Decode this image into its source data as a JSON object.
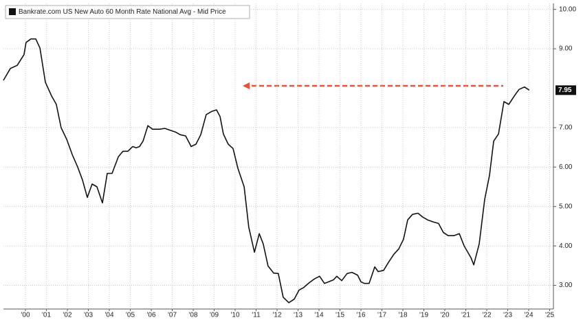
{
  "chart_data": {
    "type": "line",
    "series": [
      {
        "name": "Bankrate.com US New Auto 60 Month Rate National Avg - Mid Price",
        "color": "#111111",
        "x": [
          1999.45,
          1999.78,
          2000.11,
          2000.43,
          2000.53,
          2000.76,
          2000.99,
          2001.19,
          2001.45,
          2001.75,
          2001.97,
          2002.2,
          2002.47,
          2002.73,
          2002.99,
          2003.22,
          2003.45,
          2003.68,
          2003.91,
          2004.17,
          2004.4,
          2004.63,
          2004.93,
          2005.15,
          2005.38,
          2005.61,
          2005.78,
          2005.94,
          2006.11,
          2006.34,
          2006.56,
          2006.89,
          2007.15,
          2007.42,
          2007.65,
          2007.88,
          2008.14,
          2008.4,
          2008.63,
          2008.86,
          2009.12,
          2009.38,
          2009.61,
          2009.78,
          2009.94,
          2010.17,
          2010.4,
          2010.63,
          2010.93,
          2011.15,
          2011.42,
          2011.65,
          2011.84,
          2012.07,
          2012.34,
          2012.56,
          2012.79,
          2013.06,
          2013.32,
          2013.55,
          2013.78,
          2014.04,
          2014.3,
          2014.53,
          2014.76,
          2014.96,
          2015.19,
          2015.35,
          2015.58,
          2015.84,
          2016.07,
          2016.34,
          2016.5,
          2016.66,
          2016.89,
          2017.16,
          2017.32,
          2017.58,
          2017.81,
          2018.07,
          2018.3,
          2018.53,
          2018.73,
          2018.96,
          2019.22,
          2019.45,
          2019.68,
          2019.94,
          2020.2,
          2020.43,
          2020.66,
          2020.93,
          2021.19,
          2021.42,
          2021.75,
          2021.88,
          2022.14,
          2022.4,
          2022.63,
          2022.83,
          2023.06,
          2023.32,
          2023.55,
          2023.81,
          2024.04,
          2024.3,
          2024.53
        ],
        "values": [
          8.2,
          8.5,
          8.58,
          8.85,
          9.16,
          9.25,
          9.25,
          9.02,
          8.15,
          7.8,
          7.59,
          7.0,
          6.7,
          6.32,
          6.0,
          5.67,
          5.23,
          5.57,
          5.5,
          5.09,
          5.84,
          5.84,
          6.26,
          6.4,
          6.4,
          6.52,
          6.49,
          6.52,
          6.66,
          7.05,
          6.96,
          6.96,
          6.98,
          6.93,
          6.89,
          6.82,
          6.79,
          6.52,
          6.58,
          6.82,
          7.33,
          7.41,
          7.45,
          7.28,
          6.84,
          6.58,
          6.47,
          5.97,
          5.5,
          4.48,
          3.84,
          4.31,
          4.05,
          3.49,
          3.31,
          3.3,
          2.7,
          2.56,
          2.65,
          2.88,
          2.95,
          3.07,
          3.17,
          3.23,
          3.05,
          3.09,
          3.14,
          3.23,
          3.12,
          3.3,
          3.33,
          3.26,
          3.09,
          3.05,
          3.05,
          3.47,
          3.35,
          3.38,
          3.58,
          3.79,
          3.92,
          4.17,
          4.66,
          4.8,
          4.83,
          4.73,
          4.66,
          4.61,
          4.57,
          4.34,
          4.26,
          4.26,
          4.31,
          4.0,
          3.7,
          3.52,
          4.05,
          5.18,
          5.79,
          6.66,
          6.84,
          7.66,
          7.59,
          7.8,
          7.97,
          8.03,
          7.95
        ]
      }
    ],
    "xlim": [
      1999.45,
      2025.68
    ],
    "xticks": [
      {
        "value": 2000.5,
        "label": "'00"
      },
      {
        "value": 2001.5,
        "label": "'01"
      },
      {
        "value": 2002.5,
        "label": "'02"
      },
      {
        "value": 2003.5,
        "label": "'03"
      },
      {
        "value": 2004.5,
        "label": "'04"
      },
      {
        "value": 2005.5,
        "label": "'05"
      },
      {
        "value": 2006.5,
        "label": "'06"
      },
      {
        "value": 2007.5,
        "label": "'07"
      },
      {
        "value": 2008.5,
        "label": "'08"
      },
      {
        "value": 2009.5,
        "label": "'09"
      },
      {
        "value": 2010.5,
        "label": "'10"
      },
      {
        "value": 2011.5,
        "label": "'11"
      },
      {
        "value": 2012.5,
        "label": "'12"
      },
      {
        "value": 2013.5,
        "label": "'13"
      },
      {
        "value": 2014.5,
        "label": "'14"
      },
      {
        "value": 2015.5,
        "label": "'15"
      },
      {
        "value": 2016.5,
        "label": "'16"
      },
      {
        "value": 2017.5,
        "label": "'17"
      },
      {
        "value": 2018.5,
        "label": "'18"
      },
      {
        "value": 2019.5,
        "label": "'19"
      },
      {
        "value": 2020.5,
        "label": "'20"
      },
      {
        "value": 2021.5,
        "label": "'21"
      },
      {
        "value": 2022.5,
        "label": "'22"
      },
      {
        "value": 2023.5,
        "label": "'23"
      },
      {
        "value": 2024.5,
        "label": "'24"
      },
      {
        "value": 2025.5,
        "label": "'25"
      }
    ],
    "ylim": [
      2.4,
      10.15
    ],
    "yticks": [
      {
        "value": 3,
        "label": "3.00"
      },
      {
        "value": 4,
        "label": "4.00"
      },
      {
        "value": 5,
        "label": "5.00"
      },
      {
        "value": 6,
        "label": "6.00"
      },
      {
        "value": 7,
        "label": "7.00"
      },
      {
        "value": 9,
        "label": "9.00"
      },
      {
        "value": 10,
        "label": "10.00"
      }
    ],
    "grid": true
  }
}
